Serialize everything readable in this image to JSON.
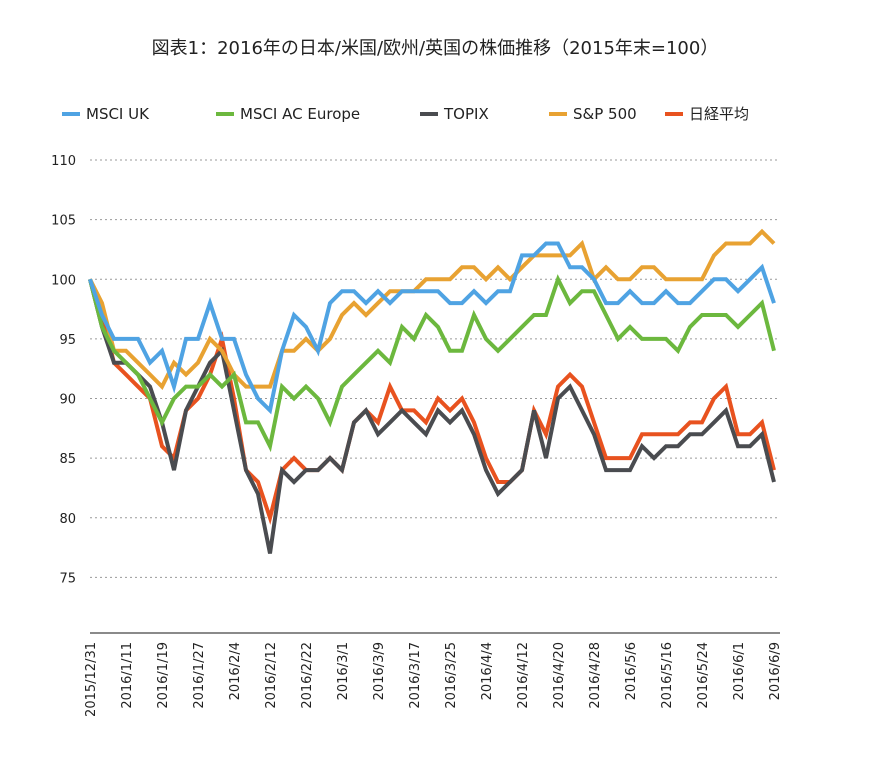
{
  "chart_data": {
    "type": "line",
    "title": "図表1：2016年の日本/米国/欧州/英国の株価推移（2015年末=100）",
    "xlabel": "",
    "ylabel": "",
    "ylim": [
      70,
      110
    ],
    "yticks": [
      75,
      80,
      85,
      90,
      95,
      100,
      105,
      110
    ],
    "grid": true,
    "legend_position": "top",
    "x_tick_labels": [
      "2015/12/31",
      "2016/1/11",
      "2016/1/19",
      "2016/1/27",
      "2016/2/4",
      "2016/2/12",
      "2016/2/22",
      "2016/3/1",
      "2016/3/9",
      "2016/3/17",
      "2016/3/25",
      "2016/4/4",
      "2016/4/12",
      "2016/4/20",
      "2016/4/28",
      "2016/5/6",
      "2016/5/16",
      "2016/5/24",
      "2016/6/1",
      "2016/6/9"
    ],
    "x_tick_every": 3,
    "series": [
      {
        "name": "MSCI UK",
        "color": "#4fa3e3",
        "values": [
          100,
          97,
          95,
          95,
          95,
          93,
          94,
          91,
          95,
          95,
          98,
          95,
          95,
          92,
          90,
          89,
          94,
          97,
          96,
          94,
          98,
          99,
          99,
          98,
          99,
          98,
          99,
          99,
          99,
          99,
          98,
          98,
          99,
          98,
          99,
          99,
          102,
          102,
          103,
          103,
          101,
          101,
          100,
          98,
          98,
          99,
          98,
          98,
          99,
          98,
          98,
          99,
          100,
          100,
          99,
          100,
          101,
          98
        ]
      },
      {
        "name": "MSCI AC Europe",
        "color": "#6cb83e",
        "values": [
          100,
          96,
          94,
          93,
          92,
          90,
          88,
          90,
          91,
          91,
          92,
          91,
          92,
          88,
          88,
          86,
          91,
          90,
          91,
          90,
          88,
          91,
          92,
          93,
          94,
          93,
          96,
          95,
          97,
          96,
          94,
          94,
          97,
          95,
          94,
          95,
          96,
          97,
          97,
          100,
          98,
          99,
          99,
          97,
          95,
          96,
          95,
          95,
          95,
          94,
          96,
          97,
          97,
          97,
          96,
          97,
          98,
          94
        ]
      },
      {
        "name": "TOPIX",
        "color": "#4a4c50",
        "values": [
          100,
          96,
          93,
          93,
          92,
          91,
          88,
          84,
          89,
          91,
          93,
          94,
          89,
          84,
          82,
          77,
          84,
          83,
          84,
          84,
          85,
          84,
          88,
          89,
          87,
          88,
          89,
          88,
          87,
          89,
          88,
          89,
          87,
          84,
          82,
          83,
          84,
          89,
          85,
          90,
          91,
          89,
          87,
          84,
          84,
          84,
          86,
          85,
          86,
          86,
          87,
          87,
          88,
          89,
          86,
          86,
          87,
          83
        ]
      },
      {
        "name": "S&P 500",
        "color": "#e8a232",
        "values": [
          100,
          98,
          94,
          94,
          93,
          92,
          91,
          93,
          92,
          93,
          95,
          94,
          92,
          91,
          91,
          91,
          94,
          94,
          95,
          94,
          95,
          97,
          98,
          97,
          98,
          99,
          99,
          99,
          100,
          100,
          100,
          101,
          101,
          100,
          101,
          100,
          101,
          102,
          102,
          102,
          102,
          103,
          100,
          101,
          100,
          100,
          101,
          101,
          100,
          100,
          100,
          100,
          102,
          103,
          103,
          103,
          104,
          103
        ]
      },
      {
        "name": "日経平均",
        "color": "#e8521f",
        "values": [
          100,
          97,
          93,
          92,
          91,
          90,
          86,
          85,
          89,
          90,
          92,
          95,
          90,
          84,
          83,
          80,
          84,
          85,
          84,
          84,
          85,
          84,
          88,
          89,
          88,
          91,
          89,
          89,
          88,
          90,
          89,
          90,
          88,
          85,
          83,
          83,
          84,
          89,
          87,
          91,
          92,
          91,
          88,
          85,
          85,
          85,
          87,
          87,
          87,
          87,
          88,
          88,
          90,
          91,
          87,
          87,
          88,
          84
        ]
      }
    ],
    "draw_order": [
      4,
      2,
      3,
      1,
      0
    ]
  }
}
